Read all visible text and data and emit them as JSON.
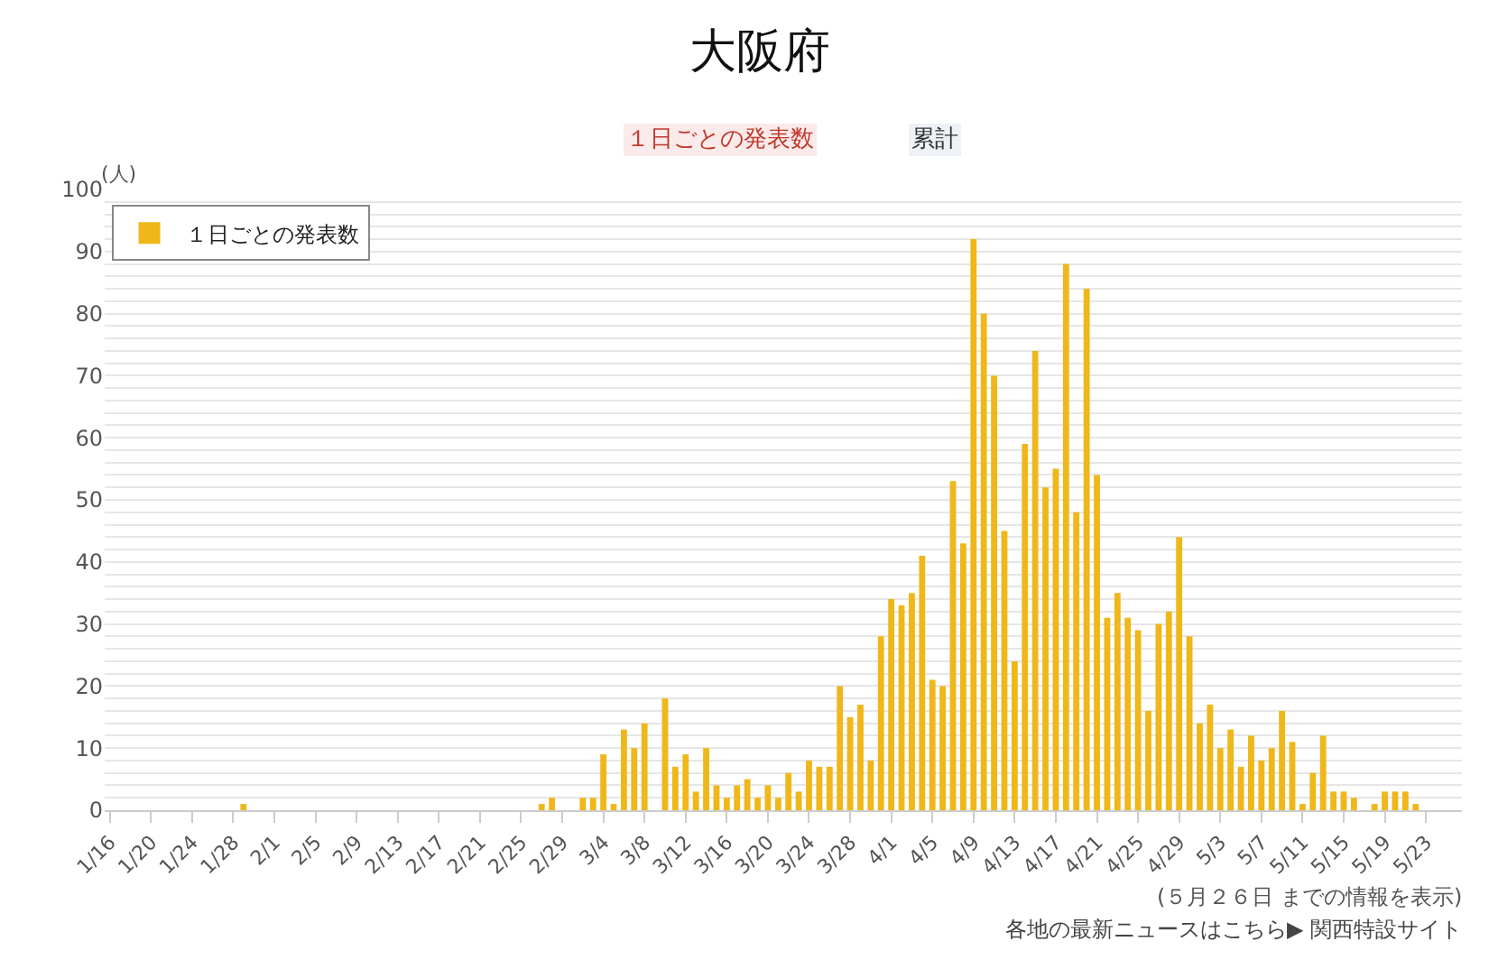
{
  "chart_data": {
    "type": "bar",
    "title": "大阪府",
    "ylabel": "(人)",
    "categories": [
      "1/16",
      null,
      null,
      null,
      "1/20",
      null,
      null,
      null,
      "1/24",
      null,
      null,
      null,
      "1/28",
      null,
      null,
      null,
      "2/1",
      null,
      null,
      null,
      "2/5",
      null,
      null,
      null,
      "2/9",
      null,
      null,
      null,
      "2/13",
      null,
      null,
      null,
      "2/17",
      null,
      null,
      null,
      "2/21",
      null,
      null,
      null,
      "2/25",
      null,
      null,
      null,
      "2/29",
      null,
      null,
      null,
      "3/4",
      null,
      null,
      null,
      "3/8",
      null,
      null,
      null,
      "3/12",
      null,
      null,
      null,
      "3/16",
      null,
      null,
      null,
      "3/20",
      null,
      null,
      null,
      "3/24",
      null,
      null,
      null,
      "3/28",
      null,
      null,
      null,
      "4/1",
      null,
      null,
      null,
      "4/5",
      null,
      null,
      null,
      "4/9",
      null,
      null,
      null,
      "4/13",
      null,
      null,
      null,
      "4/17",
      null,
      null,
      null,
      "4/21",
      null,
      null,
      null,
      "4/25",
      null,
      null,
      null,
      "4/29",
      null,
      null,
      null,
      "5/3",
      null,
      null,
      null,
      "5/7",
      null,
      null,
      null,
      "5/11",
      null,
      null,
      null,
      "5/15",
      null,
      null,
      null,
      "5/19",
      null,
      null,
      null,
      "5/23",
      null,
      null,
      null
    ],
    "series": [
      {
        "name": "１日ごとの発表数",
        "color": "#efb719",
        "values": [
          0,
          0,
          0,
          0,
          0,
          0,
          0,
          0,
          0,
          0,
          0,
          0,
          0,
          1,
          0,
          0,
          0,
          0,
          0,
          0,
          0,
          0,
          0,
          0,
          0,
          0,
          0,
          0,
          0,
          0,
          0,
          0,
          0,
          0,
          0,
          0,
          0,
          0,
          0,
          0,
          0,
          0,
          1,
          2,
          0,
          0,
          2,
          2,
          9,
          1,
          13,
          10,
          14,
          0,
          18,
          7,
          9,
          3,
          10,
          4,
          2,
          4,
          5,
          2,
          4,
          2,
          6,
          3,
          8,
          7,
          7,
          20,
          15,
          17,
          8,
          28,
          34,
          33,
          35,
          41,
          21,
          20,
          53,
          43,
          92,
          80,
          70,
          45,
          24,
          59,
          74,
          52,
          55,
          88,
          48,
          84,
          54,
          31,
          35,
          31,
          29,
          16,
          30,
          32,
          44,
          28,
          14,
          17,
          10,
          13,
          7,
          12,
          8,
          10,
          16,
          11,
          1,
          6,
          12,
          3,
          3,
          2,
          0,
          1,
          3,
          3,
          3,
          1,
          0,
          0,
          0,
          0
        ]
      }
    ],
    "ylim": [
      0,
      100
    ],
    "yticks": [
      0,
      {
        "value": 2,
        "label": null
      },
      {
        "value": 4,
        "label": null
      },
      {
        "value": 6,
        "label": null
      },
      {
        "value": 8,
        "label": null
      },
      10,
      {
        "value": 12,
        "label": null
      },
      {
        "value": 14,
        "label": null
      },
      {
        "value": 16,
        "label": null
      },
      {
        "value": 18,
        "label": null
      },
      20,
      {
        "value": 22,
        "label": null
      },
      {
        "value": 24,
        "label": null
      },
      {
        "value": 26,
        "label": null
      },
      {
        "value": 28,
        "label": null
      },
      30,
      {
        "value": 32,
        "label": null
      },
      {
        "value": 34,
        "label": null
      },
      {
        "value": 36,
        "label": null
      },
      {
        "value": 38,
        "label": null
      },
      40,
      {
        "value": 42,
        "label": null
      },
      {
        "value": 44,
        "label": null
      },
      {
        "value": 46,
        "label": null
      },
      {
        "value": 48,
        "label": null
      },
      50,
      {
        "value": 52,
        "label": null
      },
      {
        "value": 54,
        "label": null
      },
      {
        "value": 56,
        "label": null
      },
      {
        "value": 58,
        "label": null
      },
      60,
      {
        "value": 62,
        "label": null
      },
      {
        "value": 64,
        "label": null
      },
      {
        "value": 66,
        "label": null
      },
      {
        "value": 68,
        "label": null
      },
      70,
      {
        "value": 72,
        "label": null
      },
      {
        "value": 74,
        "label": null
      },
      {
        "value": 76,
        "label": null
      },
      {
        "value": 78,
        "label": null
      },
      80,
      {
        "value": 82,
        "label": null
      },
      {
        "value": 84,
        "label": null
      },
      {
        "value": 86,
        "label": null
      },
      {
        "value": 88,
        "label": null
      },
      90,
      {
        "value": 92,
        "label": null
      },
      {
        "value": 94,
        "label": null
      },
      {
        "value": 96,
        "label": null
      },
      {
        "value": 98,
        "label": null
      },
      100
    ],
    "grid": "y",
    "legend": "top left",
    "annotations": [
      "１日ごとの発表数",
      "累計",
      "(５月２６日 までの情報を表示)",
      "各地の最新ニュースはこちら▶ 関西特設サイト"
    ]
  }
}
